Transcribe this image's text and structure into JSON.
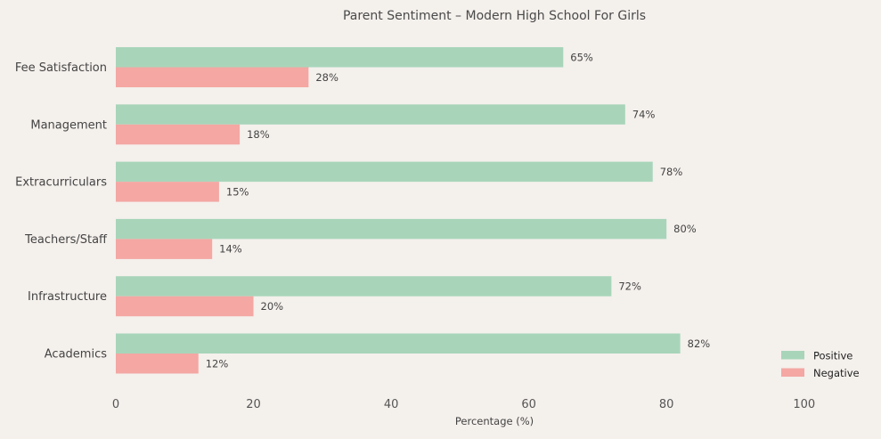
{
  "chart_data": {
    "type": "bar",
    "orientation": "horizontal",
    "title": "Parent Sentiment – Modern High School For Girls",
    "xlabel": "Percentage (%)",
    "ylabel": "",
    "xlim": [
      0,
      110
    ],
    "x_ticks": [
      0,
      20,
      40,
      60,
      80,
      100
    ],
    "x_tick_labels": [
      "0",
      "20",
      "40",
      "60",
      "80",
      "100"
    ],
    "grid": false,
    "legend_position": "bottom-right",
    "categories": [
      "Fee Satisfaction",
      "Management",
      "Extracurriculars",
      "Teachers/Staff",
      "Infrastructure",
      "Academics"
    ],
    "series": [
      {
        "name": "Positive",
        "color": "#a8d5ba",
        "values": [
          65,
          74,
          78,
          80,
          72,
          82
        ],
        "labels": [
          "65%",
          "74%",
          "78%",
          "80%",
          "72%",
          "82%"
        ]
      },
      {
        "name": "Negative",
        "color": "#f4a7a3",
        "values": [
          28,
          18,
          15,
          14,
          20,
          12
        ],
        "labels": [
          "28%",
          "18%",
          "15%",
          "14%",
          "20%",
          "12%"
        ]
      }
    ]
  }
}
